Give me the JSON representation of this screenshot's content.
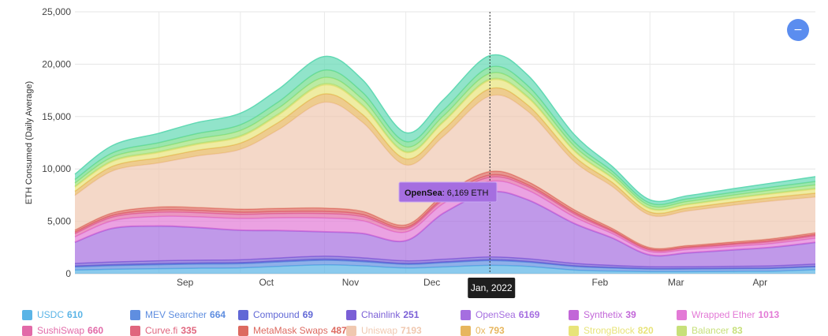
{
  "chart_data": {
    "type": "area",
    "stacked": true,
    "ylabel": "ETH Consumed (Daily Average)",
    "ylim": [
      0,
      25000
    ],
    "yticks": [
      "0",
      "5,000",
      "10,000",
      "15,000",
      "20,000",
      "25,000"
    ],
    "xticks": [
      "Sep",
      "Oct",
      "Nov",
      "Dec",
      "Jan, 2022",
      "Feb",
      "Mar",
      "Apr"
    ],
    "grid": true,
    "legend_position": "bottom",
    "x": [
      "2021-08-01",
      "2021-08-15",
      "2021-09-01",
      "2021-09-15",
      "2021-10-01",
      "2021-10-15",
      "2021-11-01",
      "2021-11-15",
      "2021-12-01",
      "2021-12-15",
      "2022-01-01",
      "2022-01-15",
      "2022-02-01",
      "2022-02-15",
      "2022-03-01",
      "2022-03-15",
      "2022-04-01",
      "2022-04-15",
      "2022-05-01"
    ],
    "series": [
      {
        "name": "USDC",
        "legend_value": "610",
        "color": "#5ab4e6",
        "values": [
          350,
          420,
          480,
          520,
          560,
          700,
          850,
          750,
          550,
          650,
          800,
          700,
          350,
          250,
          200,
          200,
          220,
          240,
          380
        ]
      },
      {
        "name": "MEV Searcher",
        "legend_value": "664",
        "color": "#5f8ee0",
        "values": [
          300,
          350,
          380,
          400,
          400,
          420,
          430,
          400,
          350,
          400,
          450,
          400,
          350,
          300,
          250,
          250,
          260,
          270,
          280
        ]
      },
      {
        "name": "Compound",
        "legend_value": "69",
        "color": "#6168d6",
        "values": [
          80,
          90,
          100,
          100,
          100,
          100,
          110,
          100,
          80,
          80,
          90,
          80,
          60,
          50,
          40,
          40,
          40,
          40,
          50
        ]
      },
      {
        "name": "Chainlink",
        "legend_value": "251",
        "color": "#7a5fd6",
        "values": [
          250,
          260,
          270,
          270,
          270,
          280,
          290,
          270,
          250,
          250,
          260,
          250,
          230,
          200,
          180,
          180,
          190,
          200,
          210
        ]
      },
      {
        "name": "OpenSea",
        "legend_value": "6169",
        "color": "#a56ee0",
        "values": [
          2000,
          3200,
          3300,
          3100,
          2800,
          2600,
          2300,
          2300,
          1900,
          4400,
          6169,
          5600,
          3800,
          2600,
          1100,
          1300,
          1550,
          1750,
          2050
        ]
      },
      {
        "name": "Synthetix",
        "legend_value": "39",
        "color": "#c266d8",
        "values": [
          40,
          40,
          40,
          40,
          40,
          40,
          40,
          40,
          40,
          40,
          40,
          40,
          40,
          40,
          40,
          40,
          40,
          40,
          40
        ]
      },
      {
        "name": "Wrapped Ether",
        "legend_value": "1013",
        "color": "#e37ad6",
        "values": [
          500,
          700,
          900,
          1000,
          1100,
          1200,
          1300,
          1200,
          800,
          900,
          1000,
          900,
          600,
          400,
          300,
          300,
          320,
          340,
          380
        ]
      },
      {
        "name": "SushiSwap",
        "legend_value": "660",
        "color": "#e26aa8",
        "values": [
          300,
          350,
          400,
          400,
          400,
          400,
          420,
          400,
          300,
          350,
          400,
          350,
          300,
          200,
          150,
          150,
          170,
          190,
          220
        ]
      },
      {
        "name": "Curve.fi",
        "legend_value": "335",
        "color": "#e0667e",
        "values": [
          150,
          170,
          200,
          200,
          200,
          200,
          210,
          200,
          150,
          170,
          200,
          170,
          150,
          100,
          80,
          80,
          90,
          100,
          120
        ]
      },
      {
        "name": "MetaMask Swaps",
        "legend_value": "487",
        "color": "#dd6a60",
        "values": [
          200,
          240,
          300,
          300,
          300,
          300,
          320,
          300,
          250,
          300,
          350,
          300,
          250,
          200,
          150,
          150,
          160,
          170,
          180
        ]
      },
      {
        "name": "Uniswap",
        "legend_value": "7193",
        "color": "#f0c8b0",
        "values": [
          3300,
          4000,
          4200,
          4900,
          5700,
          7500,
          10100,
          8500,
          5700,
          5600,
          7200,
          6700,
          4600,
          4000,
          3100,
          3300,
          3500,
          3600,
          3400
        ]
      },
      {
        "name": "0x",
        "legend_value": "793",
        "color": "#e7b65e",
        "values": [
          400,
          450,
          500,
          550,
          600,
          700,
          800,
          750,
          600,
          650,
          700,
          600,
          500,
          400,
          300,
          300,
          320,
          340,
          380
        ]
      },
      {
        "name": "StrongBlock",
        "legend_value": "820",
        "color": "#e8e47a",
        "values": [
          400,
          450,
          500,
          550,
          600,
          700,
          850,
          800,
          600,
          700,
          800,
          700,
          500,
          400,
          300,
          300,
          320,
          340,
          380
        ]
      },
      {
        "name": "Balancer",
        "legend_value": "83",
        "color": "#c7e07a",
        "values": [
          80,
          85,
          90,
          95,
          100,
          110,
          120,
          110,
          90,
          100,
          110,
          100,
          80,
          70,
          60,
          60,
          65,
          70,
          80
        ]
      },
      {
        "name": "",
        "legend_value": "",
        "color": "#9fe27c",
        "values": [
          300,
          350,
          400,
          450,
          500,
          550,
          600,
          550,
          450,
          500,
          550,
          500,
          400,
          300,
          250,
          250,
          270,
          290,
          330
        ]
      },
      {
        "name": "",
        "legend_value": "",
        "color": "#6fdc8c",
        "values": [
          350,
          400,
          450,
          500,
          550,
          600,
          700,
          650,
          500,
          550,
          600,
          550,
          400,
          300,
          250,
          250,
          270,
          290,
          330
        ]
      },
      {
        "name": "",
        "legend_value": "",
        "color": "#62d9b4",
        "values": [
          500,
          700,
          900,
          1050,
          1100,
          1200,
          1300,
          1200,
          850,
          1000,
          1100,
          1000,
          700,
          450,
          300,
          300,
          340,
          380,
          450
        ]
      }
    ],
    "hover_x_label": "Jan, 2022",
    "tooltip": {
      "series": "OpenSea",
      "text": ": 6,169 ETH"
    }
  },
  "zoom_button": {
    "icon": "zoom-out-icon",
    "label": "−"
  }
}
